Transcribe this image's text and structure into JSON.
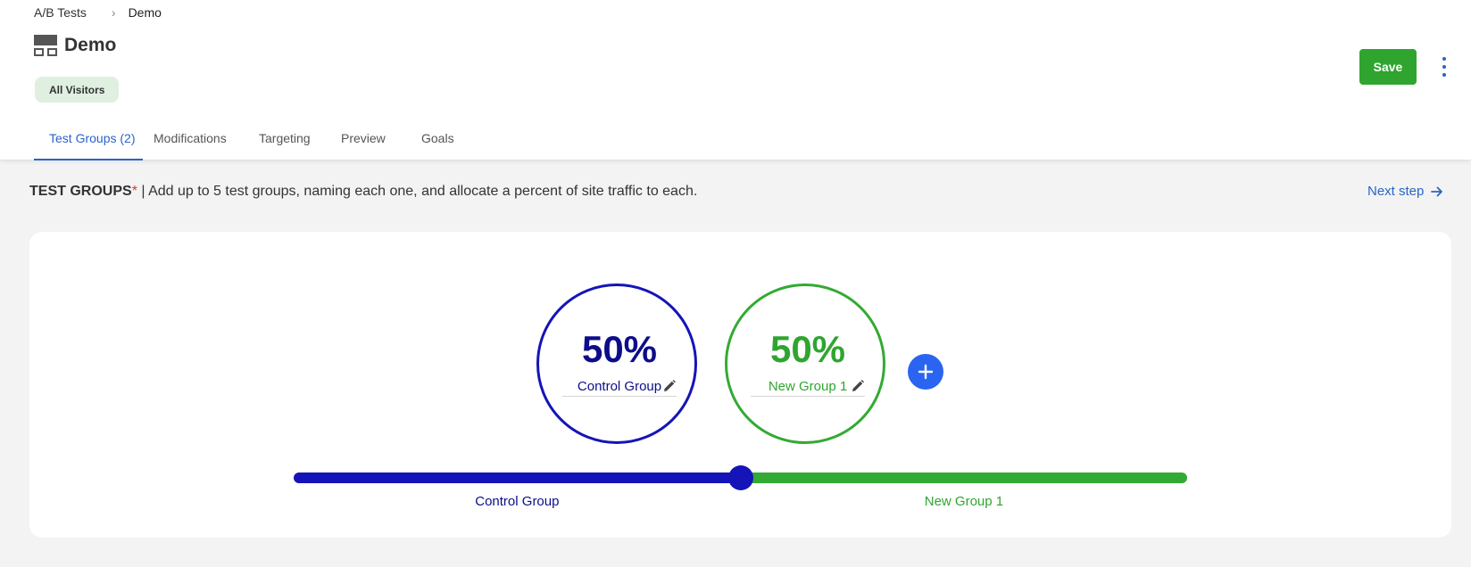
{
  "breadcrumb": {
    "root": "A/B Tests",
    "current": "Demo"
  },
  "page": {
    "title": "Demo",
    "segment": "All Visitors"
  },
  "actions": {
    "save_label": "Save"
  },
  "tabs": [
    {
      "label": "Test Groups (2)",
      "active": true
    },
    {
      "label": "Modifications",
      "active": false
    },
    {
      "label": "Targeting",
      "active": false
    },
    {
      "label": "Preview",
      "active": false
    },
    {
      "label": "Goals",
      "active": false
    }
  ],
  "intro": {
    "heading": "TEST GROUPS",
    "required_mark": "*",
    "description": " | Add up to 5 test groups, naming each one, and allocate a percent of site traffic to each."
  },
  "next_step": "Next step",
  "groups": [
    {
      "percent": "50%",
      "share": 0.5,
      "name": "Control Group",
      "color": "#1414b8",
      "text_color": "#0d0d8a"
    },
    {
      "percent": "50%",
      "share": 0.5,
      "name": "New Group 1",
      "color": "#33aa33",
      "text_color": "#2fa52f"
    }
  ],
  "colors": {
    "accent": "#2a64c8",
    "save": "#2fa52f",
    "add": "#2a64f0"
  }
}
